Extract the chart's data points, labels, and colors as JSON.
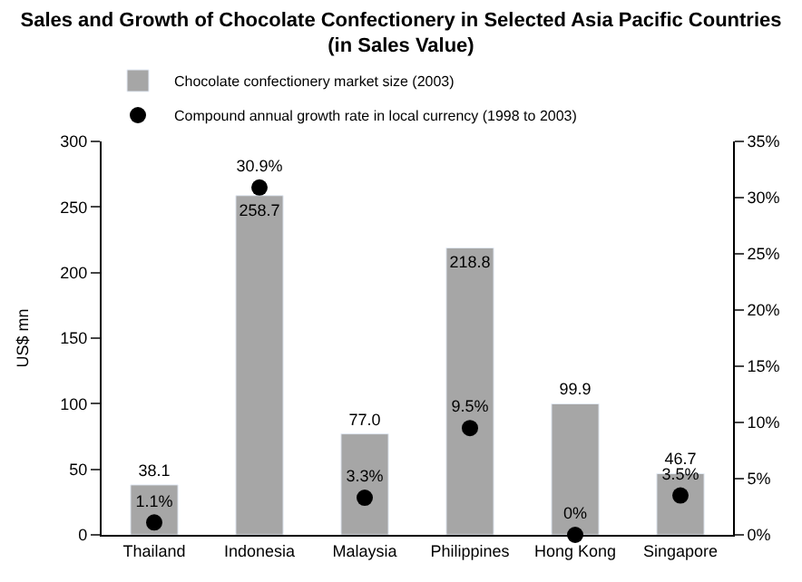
{
  "chart_data": {
    "type": "bar",
    "title": "Sales and Growth of Chocolate Confectionery in Selected Asia Pacific Countries\n(in Sales Value)",
    "ylabel": "US$ mn",
    "categories": [
      "Thailand",
      "Indonesia",
      "Malaysia",
      "Philippines",
      "Hong Kong",
      "Singapore"
    ],
    "series": [
      {
        "name": "Chocolate confectionery market size (2003)",
        "color": "#a6a6a6",
        "values": [
          38.1,
          258.7,
          77.0,
          218.8,
          99.9,
          46.7
        ],
        "value_labels": [
          "38.1",
          "258.7",
          "77.0",
          "218.8",
          "99.9",
          "46.7"
        ]
      },
      {
        "name": "Compound annual growth rate in local currency (1998 to 2003)",
        "type": "scatter",
        "axis": "y2",
        "marker": "circle",
        "color": "#000000",
        "values": [
          1.1,
          30.9,
          3.3,
          9.5,
          0,
          3.5
        ],
        "value_labels": [
          "1.1%",
          "30.9%",
          "3.3%",
          "9.5%",
          "0%",
          "3.5%"
        ]
      }
    ],
    "ylim": [
      0,
      300
    ],
    "yticks": [
      0,
      50,
      100,
      150,
      200,
      250,
      300
    ],
    "y2lim": [
      0,
      35
    ],
    "y2ticks": [
      {
        "value": 0,
        "label": "0%"
      },
      {
        "value": 5,
        "label": "5%"
      },
      {
        "value": 10,
        "label": "10%"
      },
      {
        "value": 15,
        "label": "15%"
      },
      {
        "value": 20,
        "label": "20%"
      },
      {
        "value": 25,
        "label": "25%"
      },
      {
        "value": 30,
        "label": "30%"
      },
      {
        "value": 35,
        "label": "35%"
      }
    ],
    "legend": "top left"
  }
}
